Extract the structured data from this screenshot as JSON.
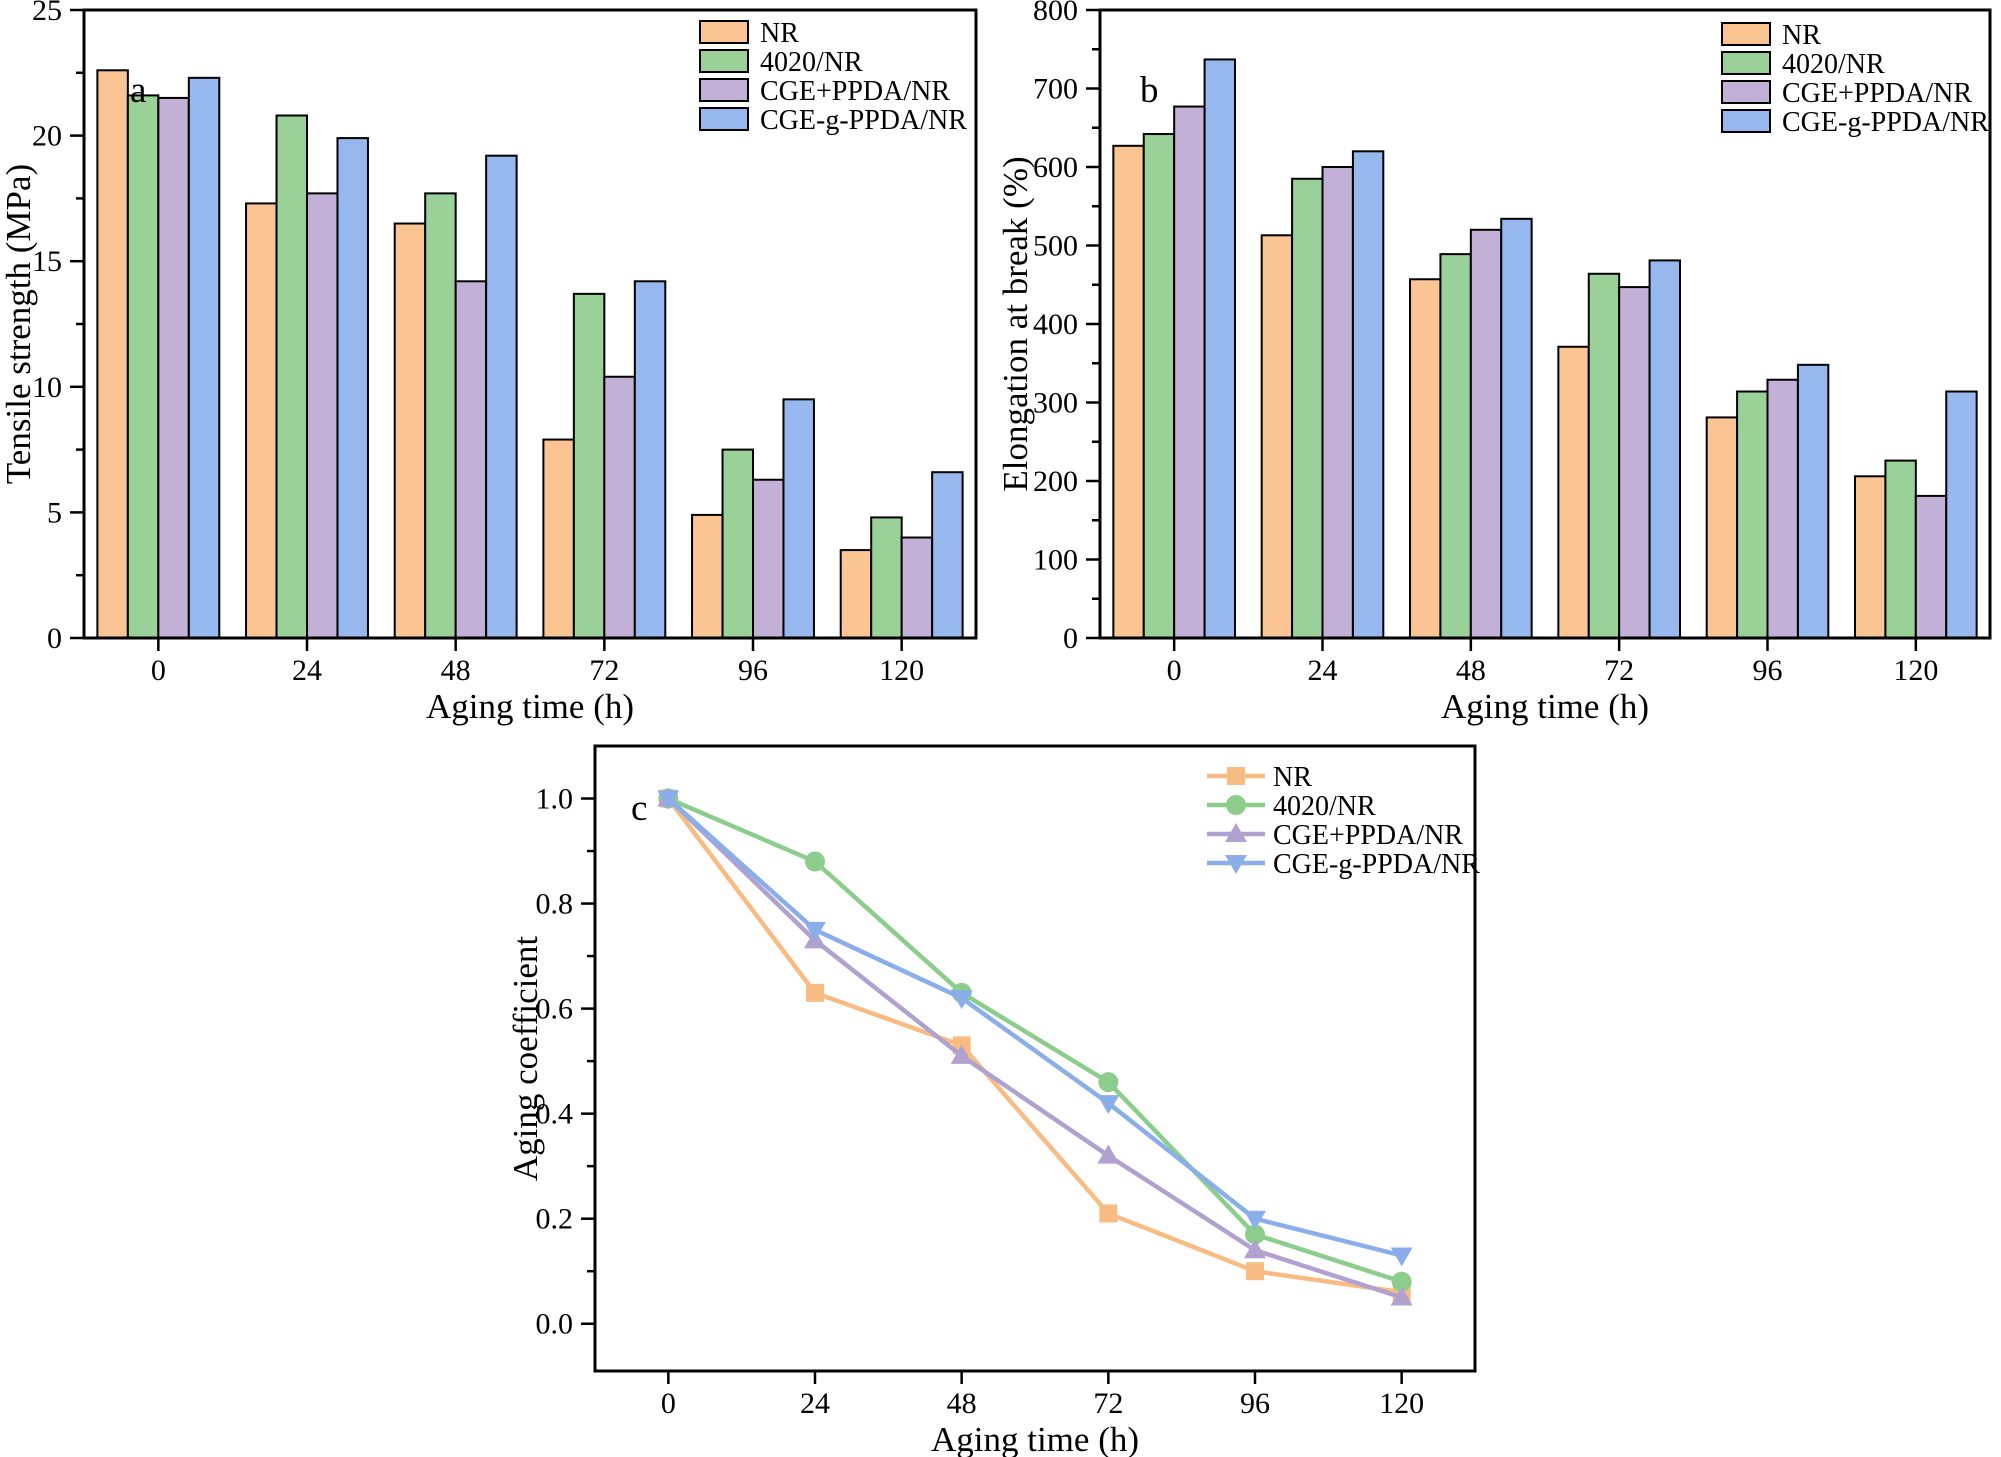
{
  "figure": {
    "background": "#ffffff",
    "edge_color": "#000000",
    "series_labels": [
      "NR",
      "4020/NR",
      "CGE+PPDA/NR",
      "CGE-g-PPDA/NR"
    ],
    "bar_colors": [
      "#FAC493",
      "#9AD199",
      "#C3B0D6",
      "#96B8EE"
    ],
    "line_colors": [
      "#F8BB82",
      "#8CCD8C",
      "#B0A1D1",
      "#8AAEEA"
    ]
  },
  "chart_data": [
    {
      "id": "a",
      "panel_label": "a",
      "type": "bar",
      "xlabel": "Aging time (h)",
      "ylabel": "Tensile strength (MPa)",
      "categories": [
        "0",
        "24",
        "48",
        "72",
        "96",
        "120"
      ],
      "ylim": [
        0,
        25
      ],
      "ytick_step": 5,
      "yminor_step": 2.5,
      "ydecimals": 0,
      "grid": false,
      "legend_position": "top-center-inside",
      "series": [
        {
          "name": "NR",
          "color": "#FAC493",
          "values": [
            22.6,
            17.3,
            16.5,
            7.9,
            4.9,
            3.5
          ]
        },
        {
          "name": "4020/NR",
          "color": "#9AD199",
          "values": [
            21.6,
            20.8,
            17.7,
            13.7,
            7.5,
            4.8
          ]
        },
        {
          "name": "CGE+PPDA/NR",
          "color": "#C3B0D6",
          "values": [
            21.5,
            17.7,
            14.2,
            10.4,
            6.3,
            4.0
          ]
        },
        {
          "name": "CGE-g-PPDA/NR",
          "color": "#96B8EE",
          "values": [
            22.3,
            19.9,
            19.2,
            14.2,
            9.5,
            6.6
          ]
        }
      ]
    },
    {
      "id": "b",
      "panel_label": "b",
      "type": "bar",
      "xlabel": "Aging time (h)",
      "ylabel": "Elongation at break (%)",
      "categories": [
        "0",
        "24",
        "48",
        "72",
        "96",
        "120"
      ],
      "ylim": [
        0,
        800
      ],
      "ytick_step": 100,
      "yminor_step": 50,
      "ydecimals": 0,
      "grid": false,
      "legend_position": "top-center-inside",
      "series": [
        {
          "name": "NR",
          "color": "#FAC493",
          "values": [
            627,
            513,
            457,
            371,
            281,
            206
          ]
        },
        {
          "name": "4020/NR",
          "color": "#9AD199",
          "values": [
            642,
            585,
            489,
            464,
            314,
            226
          ]
        },
        {
          "name": "CGE+PPDA/NR",
          "color": "#C3B0D6",
          "values": [
            677,
            600,
            520,
            447,
            329,
            181
          ]
        },
        {
          "name": "CGE-g-PPDA/NR",
          "color": "#96B8EE",
          "values": [
            737,
            620,
            534,
            481,
            348,
            314
          ]
        }
      ]
    },
    {
      "id": "c",
      "panel_label": "c",
      "type": "line",
      "xlabel": "Aging time (h)",
      "ylabel": "Aging coefficient",
      "categories": [
        "0",
        "24",
        "48",
        "72",
        "96",
        "120"
      ],
      "ylim": [
        -0.09,
        1.1
      ],
      "ytick_min": 0,
      "ytick_max": 1.0,
      "ytick_step": 0.2,
      "yminor_step": 0.1,
      "ydecimals": 1,
      "grid": false,
      "legend_position": "top-right-inside",
      "series": [
        {
          "name": "NR",
          "color": "#F8BB82",
          "marker": "square",
          "values": [
            1.0,
            0.63,
            0.53,
            0.21,
            0.1,
            0.06
          ]
        },
        {
          "name": "4020/NR",
          "color": "#8CCD8C",
          "marker": "circle",
          "values": [
            1.0,
            0.88,
            0.63,
            0.46,
            0.17,
            0.08
          ]
        },
        {
          "name": "CGE+PPDA/NR",
          "color": "#B0A1D1",
          "marker": "triangle-up",
          "values": [
            1.0,
            0.73,
            0.51,
            0.32,
            0.14,
            0.05
          ]
        },
        {
          "name": "CGE-g-PPDA/NR",
          "color": "#8AAEEA",
          "marker": "triangle-down",
          "values": [
            1.0,
            0.75,
            0.62,
            0.42,
            0.2,
            0.13
          ]
        }
      ]
    }
  ]
}
